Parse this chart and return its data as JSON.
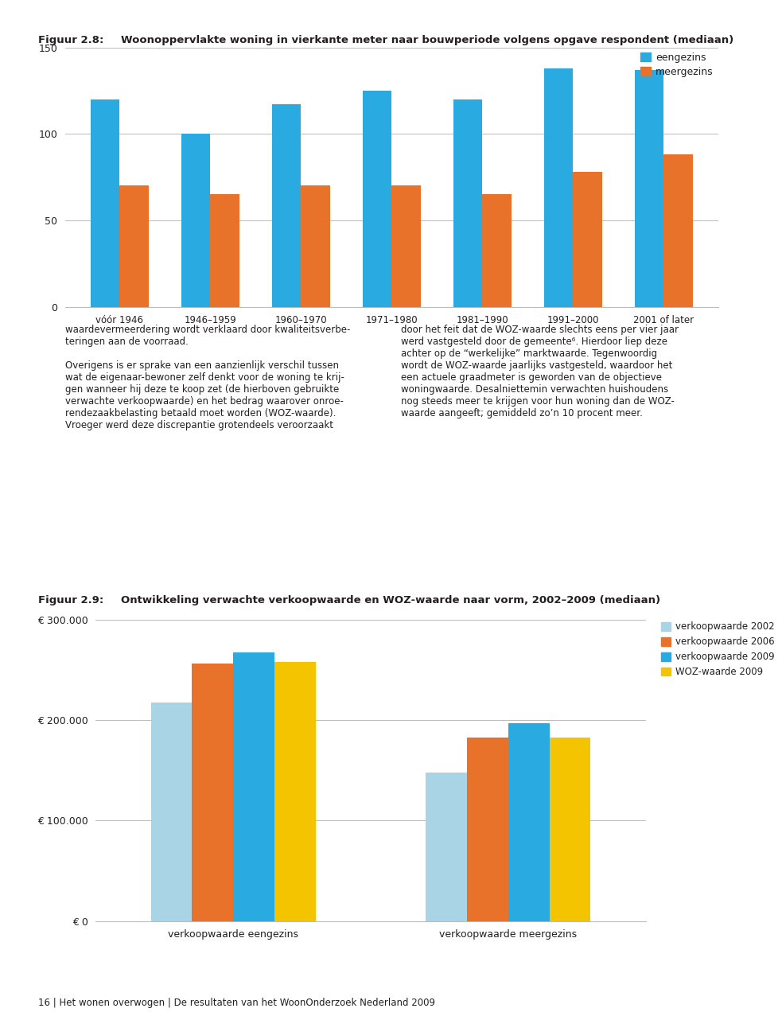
{
  "fig1": {
    "title_label": "Figuur 2.8:",
    "title_text": "Woonoppervlakte woning in vierkante meter naar bouwperiode volgens opgave respondent (mediaan)",
    "categories": [
      "vóór 1946",
      "1946–1959",
      "1960–1970",
      "1971–1980",
      "1981–1990",
      "1991–2000",
      "2001 of later"
    ],
    "eengezins": [
      120,
      100,
      117,
      125,
      120,
      138,
      137
    ],
    "meergezins": [
      70,
      65,
      70,
      70,
      65,
      78,
      88
    ],
    "color_eengezins": "#29ABE2",
    "color_meergezins": "#E8722A",
    "ylim": [
      0,
      150
    ],
    "yticks": [
      0,
      50,
      100,
      150
    ],
    "legend_eengezins": "eengezins",
    "legend_meergezins": "meergezins"
  },
  "text_col1_lines": [
    "waardevermeerdering wordt verklaard door kwaliteitsverbe-",
    "teringen aan de voorraad.",
    "",
    "Overigens is er sprake van een aanzienlijk verschil tussen",
    "wat de eigenaar-bewoner zelf denkt voor de woning te krij-",
    "gen wanneer hij deze te koop zet (de hierboven gebruikte",
    "verwachte verkoopwaarde) en het bedrag waarover onroe-",
    "rendezaakbelasting betaald moet worden (WOZ-waarde).",
    "Vroeger werd deze discrepantie grotendeels veroorzaakt"
  ],
  "text_col2_lines": [
    "door het feit dat de WOZ-waarde slechts eens per vier jaar",
    "werd vastgesteld door de gemeente⁶. Hierdoor liep deze",
    "achter op de “werkelijke” marktwaarde. Tegenwoordig",
    "wordt de WOZ-waarde jaarlijks vastgesteld, waardoor het",
    "een actuele graadmeter is geworden van de objectieve",
    "woningwaarde. Desalniettemin verwachten huishoudens",
    "nog steeds meer te krijgen voor hun woning dan de WOZ-",
    "waarde aangeeft; gemiddeld zo’n 10 procent meer."
  ],
  "fig2": {
    "title_label": "Figuur 2.9:",
    "title_text": "Ontwikkeling verwachte verkoopwaarde en WOZ-waarde naar vorm, 2002–2009 (mediaan)",
    "groups": [
      "verkoopwaarde eengezins",
      "verkoopwaarde meergezins"
    ],
    "series": [
      "verkoopwaarde 2002",
      "verkoopwaarde 2006",
      "verkoopwaarde 2009",
      "WOZ-waarde 2009"
    ],
    "colors": [
      "#A8D4E6",
      "#E8722A",
      "#29ABE2",
      "#F5C400"
    ],
    "eengezins_values": [
      218000,
      257000,
      268000,
      258000
    ],
    "meergezins_values": [
      148000,
      183000,
      197000,
      183000
    ],
    "ylim": [
      0,
      300000
    ],
    "yticks": [
      0,
      100000,
      200000,
      300000
    ],
    "ytick_labels": [
      "€ 0",
      "€ 100.000",
      "€ 200.000",
      "€ 300.000"
    ],
    "footer": "16 | Het wonen overwogen | De resultaten van het WoonOnderzoek Nederland 2009"
  },
  "top_border_color": "#C8956A",
  "separator_color": "#C8956A",
  "background_color": "#FFFFFF",
  "text_color": "#231F20"
}
